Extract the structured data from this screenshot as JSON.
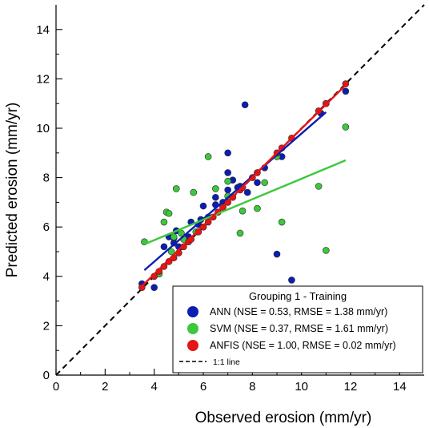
{
  "chart_data": {
    "type": "scatter",
    "xlabel": "Observed erosion (mm/yr)",
    "ylabel": "Predicted erosion (mm/yr)",
    "xlim": [
      0,
      15
    ],
    "ylim": [
      0,
      15
    ],
    "xticks": [
      0,
      2,
      4,
      6,
      8,
      10,
      12,
      14
    ],
    "yticks": [
      0,
      2,
      4,
      6,
      8,
      10,
      12,
      14
    ],
    "minor_tick_step": 1,
    "grid": false,
    "legend": {
      "position": "bottom-right",
      "title": "Grouping 1 - Training",
      "entries": [
        {
          "series": "ANN",
          "label": "ANN (NSE = 0.53, RMSE = 1.38 mm/yr)"
        },
        {
          "series": "SVM",
          "label": "SVM (NSE = 0.37, RMSE = 1.61 mm/yr)"
        },
        {
          "series": "ANFIS",
          "label": "ANFIS (NSE = 1.00, RMSE = 0.02 mm/yr)"
        },
        {
          "series": "1:1",
          "label": "1:1 line"
        }
      ]
    },
    "reference_line": {
      "name": "1:1 line",
      "style": "dashed",
      "color": "#000000",
      "from": [
        0,
        0
      ],
      "to": [
        15,
        15
      ]
    },
    "series": [
      {
        "name": "ANN",
        "color": "#0a1eb4",
        "fit": [
          [
            3.6,
            4.25
          ],
          [
            11.0,
            10.65
          ]
        ],
        "points": [
          [
            3.5,
            3.7
          ],
          [
            4.0,
            3.55
          ],
          [
            4.2,
            4.1
          ],
          [
            4.4,
            5.2
          ],
          [
            4.6,
            5.6
          ],
          [
            4.8,
            5.35
          ],
          [
            4.8,
            5.55
          ],
          [
            4.9,
            5.85
          ],
          [
            5.0,
            5.2
          ],
          [
            5.4,
            5.6
          ],
          [
            5.5,
            6.2
          ],
          [
            5.8,
            6.1
          ],
          [
            5.9,
            6.3
          ],
          [
            6.0,
            6.85
          ],
          [
            6.2,
            6.4
          ],
          [
            6.5,
            6.9
          ],
          [
            6.5,
            7.2
          ],
          [
            6.8,
            7.0
          ],
          [
            7.0,
            9.0
          ],
          [
            7.0,
            8.2
          ],
          [
            7.0,
            7.5
          ],
          [
            7.2,
            7.9
          ],
          [
            7.4,
            7.6
          ],
          [
            7.5,
            7.65
          ],
          [
            7.7,
            10.95
          ],
          [
            7.8,
            7.4
          ],
          [
            8.2,
            7.8
          ],
          [
            8.5,
            8.4
          ],
          [
            9.0,
            4.9
          ],
          [
            9.2,
            8.85
          ],
          [
            9.6,
            3.85
          ],
          [
            10.8,
            10.6
          ],
          [
            11.0,
            11.0
          ],
          [
            11.8,
            11.5
          ]
        ]
      },
      {
        "name": "SVM",
        "color": "#3cc83c",
        "fit": [
          [
            3.6,
            5.3
          ],
          [
            11.8,
            8.7
          ]
        ],
        "points": [
          [
            3.6,
            5.4
          ],
          [
            4.2,
            4.1
          ],
          [
            4.4,
            6.2
          ],
          [
            4.5,
            6.6
          ],
          [
            4.6,
            6.55
          ],
          [
            4.7,
            5.0
          ],
          [
            4.8,
            5.6
          ],
          [
            4.9,
            7.55
          ],
          [
            5.1,
            5.75
          ],
          [
            5.2,
            5.5
          ],
          [
            5.6,
            7.4
          ],
          [
            5.7,
            5.8
          ],
          [
            6.0,
            6.0
          ],
          [
            6.2,
            8.85
          ],
          [
            6.5,
            7.55
          ],
          [
            6.8,
            6.8
          ],
          [
            7.0,
            7.85
          ],
          [
            7.0,
            7.25
          ],
          [
            7.5,
            5.75
          ],
          [
            7.6,
            6.65
          ],
          [
            8.2,
            6.75
          ],
          [
            8.5,
            7.8
          ],
          [
            9.0,
            8.85
          ],
          [
            9.2,
            6.2
          ],
          [
            10.7,
            7.65
          ],
          [
            11.0,
            5.05
          ],
          [
            11.8,
            10.05
          ]
        ]
      },
      {
        "name": "ANFIS",
        "color": "#e61414",
        "fit": [
          [
            3.5,
            3.6
          ],
          [
            11.8,
            11.75
          ]
        ],
        "points": [
          [
            3.5,
            3.55
          ],
          [
            4.0,
            4.0
          ],
          [
            4.2,
            4.2
          ],
          [
            4.4,
            4.4
          ],
          [
            4.6,
            4.6
          ],
          [
            4.8,
            4.75
          ],
          [
            5.0,
            4.95
          ],
          [
            5.2,
            5.2
          ],
          [
            5.4,
            5.4
          ],
          [
            5.5,
            5.5
          ],
          [
            5.8,
            5.8
          ],
          [
            6.0,
            6.0
          ],
          [
            6.2,
            6.2
          ],
          [
            6.4,
            6.4
          ],
          [
            6.6,
            6.6
          ],
          [
            6.8,
            6.8
          ],
          [
            7.0,
            7.0
          ],
          [
            7.2,
            7.2
          ],
          [
            7.5,
            7.5
          ],
          [
            7.6,
            7.6
          ],
          [
            8.0,
            8.0
          ],
          [
            8.2,
            8.2
          ],
          [
            9.0,
            9.0
          ],
          [
            9.2,
            9.2
          ],
          [
            9.6,
            9.6
          ],
          [
            10.7,
            10.7
          ],
          [
            11.0,
            11.0
          ],
          [
            11.8,
            11.8
          ]
        ]
      }
    ]
  }
}
